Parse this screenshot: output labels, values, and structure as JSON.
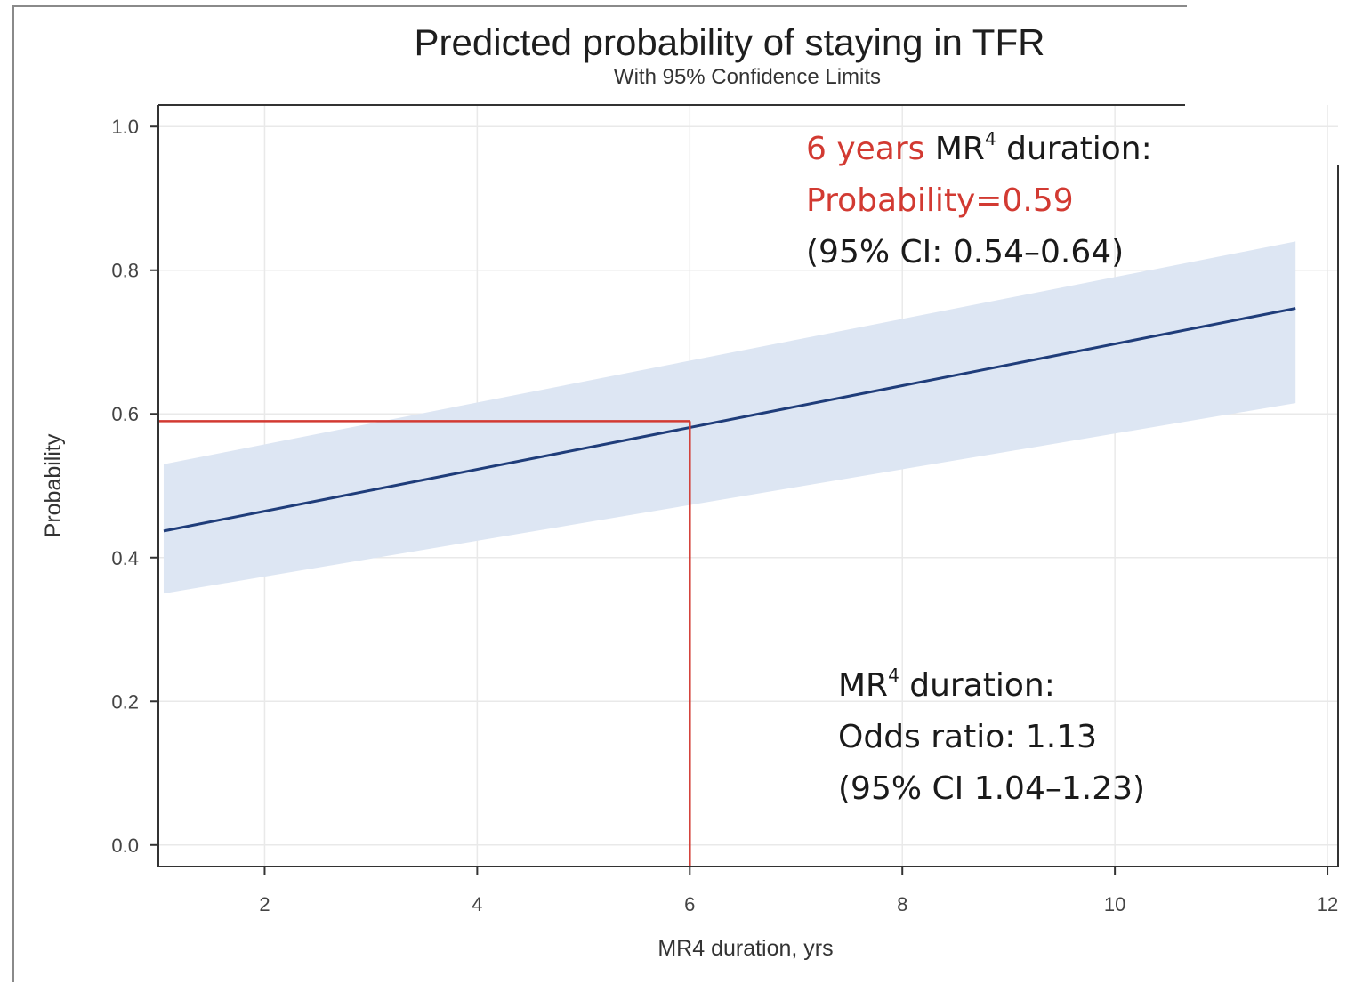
{
  "chart_data": {
    "type": "line",
    "title": "Predicted probability of staying in TFR",
    "subtitle": "With 95% Confidence Limits",
    "xlabel": "MR4 duration, yrs",
    "ylabel": "Probability",
    "xlim": [
      1,
      12.1
    ],
    "ylim": [
      -0.03,
      1.03
    ],
    "xticks": [
      2,
      4,
      6,
      8,
      10,
      12
    ],
    "yticks": [
      0.0,
      0.2,
      0.4,
      0.6,
      0.8,
      1.0
    ],
    "xtick_labels": [
      "2",
      "4",
      "6",
      "8",
      "10",
      "12"
    ],
    "ytick_labels": [
      "0.0",
      "0.2",
      "0.4",
      "0.6",
      "0.8",
      "1.0"
    ],
    "grid": true,
    "series": [
      {
        "x": [
          1.05,
          11.7
        ],
        "y": [
          0.437,
          0.747
        ],
        "lower": [
          0.35,
          0.615
        ],
        "upper": [
          0.53,
          0.84
        ],
        "color": "#1f3d7a",
        "band_color": "#dde6f3"
      }
    ],
    "reference": {
      "x": 6,
      "y": 0.59,
      "color": "#d23a32"
    },
    "annotations": [
      {
        "lines": [
          {
            "parts": [
              {
                "text": "6 years",
                "color": "#d23a32"
              },
              {
                "text": " MR"
              },
              {
                "text": "4",
                "sup": true
              },
              {
                "text": " duration:"
              }
            ]
          },
          {
            "parts": [
              {
                "text": "Probability=0.59",
                "color": "#d23a32"
              }
            ]
          },
          {
            "parts": [
              {
                "text": "(95% CI: 0.54–0.64)"
              }
            ]
          }
        ]
      },
      {
        "lines": [
          {
            "parts": [
              {
                "text": "MR"
              },
              {
                "text": "4",
                "sup": true
              },
              {
                "text": " duration:"
              }
            ]
          },
          {
            "parts": [
              {
                "text": "Odds ratio: 1.13"
              }
            ]
          },
          {
            "parts": [
              {
                "text": "(95% CI 1.04–1.23)"
              }
            ]
          }
        ]
      }
    ]
  }
}
